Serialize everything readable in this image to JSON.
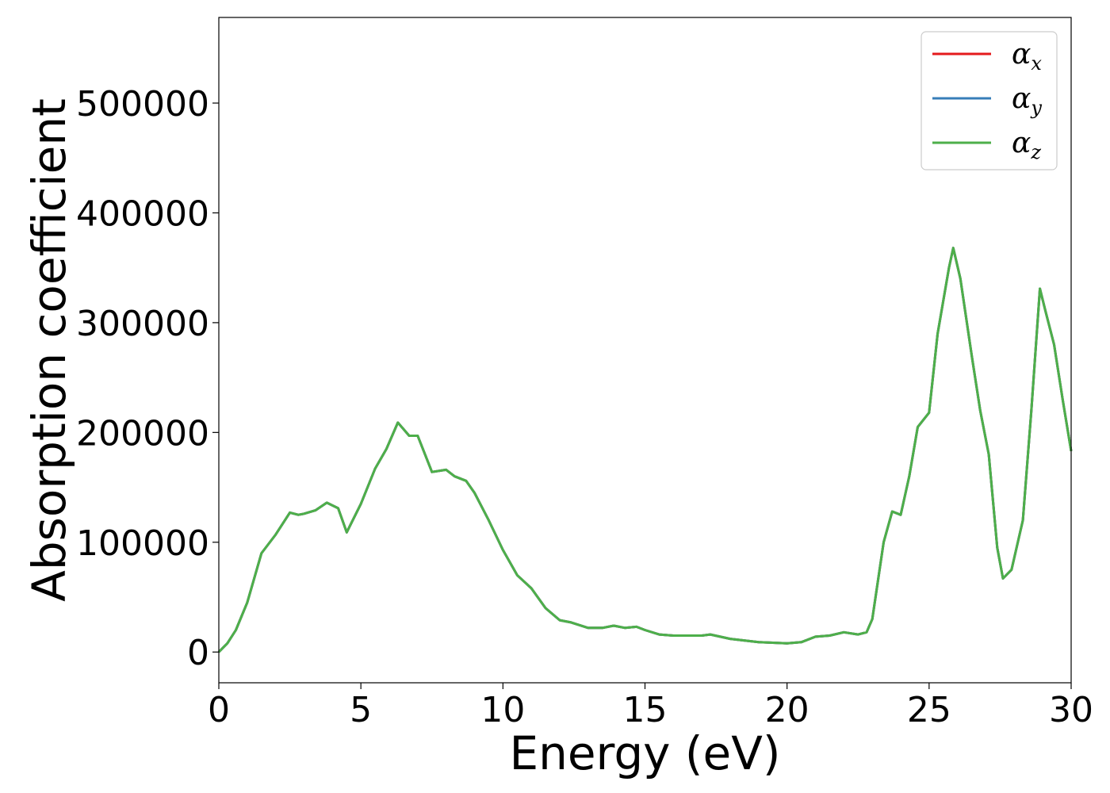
{
  "chart_data": {
    "type": "line",
    "title": "",
    "xlabel": "Energy (eV)",
    "ylabel": "Absorption coefficient",
    "xlim": [
      0,
      30
    ],
    "ylim": [
      -28000,
      578000
    ],
    "xticks": [
      0,
      5,
      10,
      15,
      20,
      25,
      30
    ],
    "yticks": [
      0,
      100000,
      200000,
      300000,
      400000,
      500000
    ],
    "grid": false,
    "legend_position": "top-right",
    "series": [
      {
        "name": "αx",
        "symbol": "α",
        "sub": "x",
        "color": "#e41a1c"
      },
      {
        "name": "αy",
        "symbol": "α",
        "sub": "y",
        "color": "#377eb8"
      },
      {
        "name": "αz",
        "symbol": "α",
        "sub": "z",
        "color": "#4daf4a"
      }
    ],
    "x": [
      0,
      0.3,
      0.6,
      1.0,
      1.5,
      2.0,
      2.5,
      2.8,
      3.0,
      3.4,
      3.8,
      4.2,
      4.5,
      5.0,
      5.5,
      5.9,
      6.3,
      6.7,
      7.0,
      7.5,
      8.0,
      8.3,
      8.7,
      9.0,
      9.5,
      10.0,
      10.5,
      11.0,
      11.5,
      12.0,
      12.4,
      13.0,
      13.5,
      13.9,
      14.3,
      14.7,
      15.0,
      15.5,
      16.0,
      16.5,
      17.0,
      17.3,
      18.0,
      19.0,
      20.0,
      20.5,
      21.0,
      21.5,
      22.0,
      22.5,
      22.8,
      23.0,
      23.4,
      23.7,
      24.0,
      24.3,
      24.6,
      25.0,
      25.3,
      25.7,
      25.85,
      26.1,
      26.5,
      26.8,
      27.1,
      27.4,
      27.6,
      27.9,
      28.3,
      28.6,
      28.9,
      29.1,
      29.4,
      29.7,
      30.0
    ],
    "y": [
      0,
      8000,
      20000,
      45000,
      90000,
      107000,
      127000,
      125000,
      126000,
      129000,
      136000,
      131000,
      109000,
      135000,
      167000,
      185000,
      209000,
      197000,
      197000,
      164000,
      166000,
      160000,
      156000,
      145000,
      120000,
      93000,
      70000,
      58000,
      40000,
      29000,
      27000,
      22000,
      22000,
      24000,
      22000,
      23000,
      20000,
      16000,
      15000,
      15000,
      15000,
      16000,
      12000,
      9000,
      8000,
      9000,
      14000,
      15000,
      18000,
      16000,
      18000,
      30000,
      100000,
      128000,
      125000,
      160000,
      205000,
      218000,
      290000,
      350000,
      368000,
      340000,
      270000,
      220000,
      180000,
      95000,
      67000,
      75000,
      120000,
      220000,
      331000,
      310000,
      280000,
      230000,
      183000
    ]
  }
}
